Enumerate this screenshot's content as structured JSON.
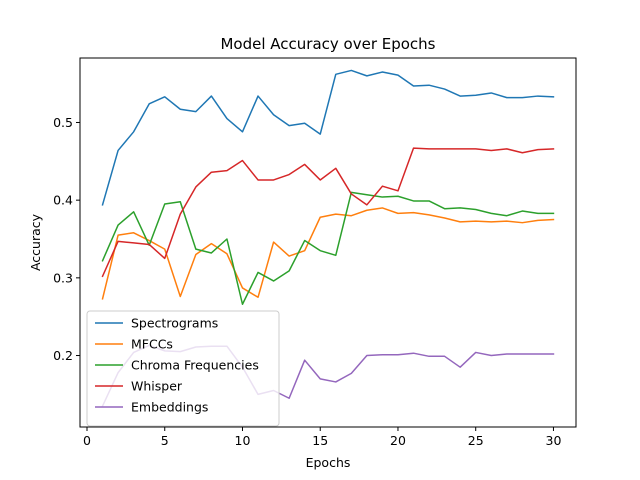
{
  "chart_data": {
    "type": "line",
    "title": "Model Accuracy over Epochs",
    "xlabel": "Epochs",
    "ylabel": "Accuracy",
    "xlim": [
      -0.45,
      31.45
    ],
    "ylim": [
      0.108,
      0.583
    ],
    "xticks": [
      0,
      5,
      10,
      15,
      20,
      25,
      30
    ],
    "xtick_labels": [
      "0",
      "5",
      "10",
      "15",
      "20",
      "25",
      "30"
    ],
    "yticks": [
      0.2,
      0.3,
      0.4,
      0.5
    ],
    "ytick_labels": [
      "0.2",
      "0.3",
      "0.4",
      "0.5"
    ],
    "grid": false,
    "legend_position": "lower-left",
    "x": [
      1,
      2,
      3,
      4,
      5,
      6,
      7,
      8,
      9,
      10,
      11,
      12,
      13,
      14,
      15,
      16,
      17,
      18,
      19,
      20,
      21,
      22,
      23,
      24,
      25,
      26,
      27,
      28,
      29,
      30
    ],
    "series": [
      {
        "name": "Spectrograms",
        "color": "#1f77b4",
        "values": [
          0.394,
          0.464,
          0.488,
          0.524,
          0.533,
          0.517,
          0.514,
          0.534,
          0.505,
          0.488,
          0.534,
          0.51,
          0.496,
          0.499,
          0.485,
          0.562,
          0.567,
          0.56,
          0.565,
          0.561,
          0.547,
          0.548,
          0.543,
          0.534,
          0.535,
          0.538,
          0.532,
          0.532,
          0.534,
          0.533
        ]
      },
      {
        "name": "MFCCs",
        "color": "#ff7f0e",
        "values": [
          0.273,
          0.355,
          0.358,
          0.348,
          0.337,
          0.276,
          0.33,
          0.344,
          0.331,
          0.287,
          0.275,
          0.346,
          0.328,
          0.335,
          0.378,
          0.382,
          0.38,
          0.387,
          0.39,
          0.383,
          0.384,
          0.381,
          0.377,
          0.372,
          0.373,
          0.372,
          0.373,
          0.371,
          0.374,
          0.375
        ]
      },
      {
        "name": "Chroma Frequencies",
        "color": "#2ca02c",
        "values": [
          0.322,
          0.368,
          0.385,
          0.342,
          0.395,
          0.398,
          0.337,
          0.332,
          0.35,
          0.266,
          0.307,
          0.296,
          0.309,
          0.348,
          0.335,
          0.329,
          0.41,
          0.407,
          0.404,
          0.405,
          0.399,
          0.399,
          0.389,
          0.39,
          0.388,
          0.383,
          0.38,
          0.386,
          0.383,
          0.383
        ]
      },
      {
        "name": "Whisper",
        "color": "#d62728",
        "values": [
          0.302,
          0.347,
          0.345,
          0.343,
          0.325,
          0.382,
          0.417,
          0.436,
          0.438,
          0.451,
          0.426,
          0.426,
          0.433,
          0.446,
          0.426,
          0.441,
          0.408,
          0.394,
          0.418,
          0.412,
          0.467,
          0.466,
          0.466,
          0.466,
          0.466,
          0.464,
          0.466,
          0.461,
          0.465,
          0.466
        ]
      },
      {
        "name": "Embeddings",
        "color": "#9467bd",
        "values": [
          0.135,
          0.178,
          0.204,
          0.213,
          0.206,
          0.205,
          0.211,
          0.212,
          0.212,
          0.185,
          0.15,
          0.155,
          0.145,
          0.194,
          0.17,
          0.166,
          0.177,
          0.2,
          0.201,
          0.201,
          0.203,
          0.199,
          0.199,
          0.185,
          0.204,
          0.2,
          0.202,
          0.202,
          0.202,
          0.202
        ]
      }
    ]
  }
}
